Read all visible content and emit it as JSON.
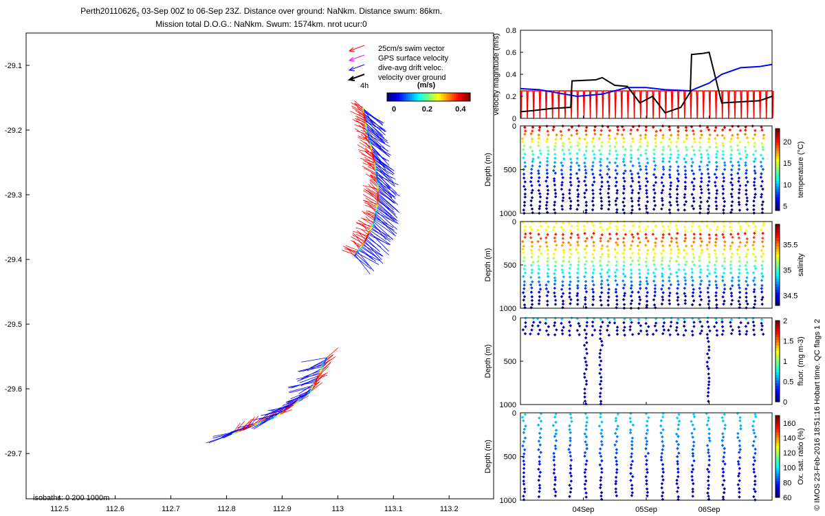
{
  "header": {
    "title_line1_prefix": "Perth20110626",
    "title_line1_sub": "2",
    "title_line1_suffix": " 03-Sep 00Z to 06-Sep 23Z. Distance over ground: NaNkm. Distance swum: 86km.",
    "title_line2": "Mission total D.O.G.: NaNkm. Swum: 1574km. nrot ucur:0"
  },
  "footer_note": "© IMOS 23-Feb-2016 18:51:16 Hobart time. QC flags 1  2",
  "colors": {
    "swim": "#ff0000",
    "gps": "#ff00ff",
    "drift": "#0000ff",
    "ground": "#000000"
  },
  "chart_data": [
    {
      "type": "map",
      "name": "glider-track",
      "xlim": [
        112.44,
        113.28
      ],
      "ylim": [
        -29.77,
        -29.05
      ],
      "xticks": [
        "112.5",
        "112.6",
        "112.7",
        "112.8",
        "112.9",
        "113",
        "113.1",
        "113.2"
      ],
      "xtick_values": [
        112.5,
        112.6,
        112.7,
        112.8,
        112.9,
        113.0,
        113.1,
        113.2
      ],
      "yticks": [
        "-29.1",
        "-29.2",
        "-29.3",
        "-29.4",
        "-29.5",
        "-29.6",
        "-29.7"
      ],
      "ytick_values": [
        -29.1,
        -29.2,
        -29.3,
        -29.4,
        -29.5,
        -29.6,
        -29.7
      ],
      "legend": [
        "25cm/s swim vector",
        "GPS surface velocity",
        "dive-avg drift veloc.",
        "velocity over ground"
      ],
      "legend_scale_label": "4h",
      "colorbar": {
        "label": "(m/s)",
        "ticks": [
          "0",
          "0.2",
          "0.4"
        ],
        "tick_values": [
          0,
          0.2,
          0.4
        ],
        "range": [
          0,
          0.5
        ]
      },
      "isobath_note": "isobaths: 0   200  1000m",
      "track_north": [
        [
          113.045,
          -29.165
        ],
        [
          113.05,
          -29.19
        ],
        [
          113.058,
          -29.22
        ],
        [
          113.066,
          -29.25
        ],
        [
          113.072,
          -29.28
        ],
        [
          113.072,
          -29.31
        ],
        [
          113.066,
          -29.34
        ],
        [
          113.05,
          -29.37
        ],
        [
          113.03,
          -29.395
        ]
      ],
      "track_south": [
        [
          112.81,
          -29.67
        ],
        [
          112.85,
          -29.655
        ],
        [
          112.885,
          -29.645
        ],
        [
          112.92,
          -29.625
        ],
        [
          112.95,
          -29.605
        ],
        [
          112.965,
          -29.58
        ],
        [
          112.98,
          -29.552
        ]
      ]
    },
    {
      "type": "line",
      "name": "velocity-magnitude",
      "ylabel": "velocity magnitude (m/s)",
      "xlim": [
        3.0,
        7.0
      ],
      "ylim": [
        0,
        0.8
      ],
      "yticks": [
        "0",
        "0.2",
        "0.4",
        "0.6",
        "0.8"
      ],
      "ytick_values": [
        0,
        0.2,
        0.4,
        0.6,
        0.8
      ],
      "series": [
        {
          "color": "#0000ff",
          "x": [
            3.0,
            3.3,
            3.6,
            3.9,
            4.3,
            4.7,
            5.0,
            5.3,
            5.7,
            6.0,
            6.2,
            6.5,
            6.8,
            7.0
          ],
          "y": [
            0.27,
            0.26,
            0.23,
            0.2,
            0.22,
            0.28,
            0.28,
            0.26,
            0.25,
            0.32,
            0.4,
            0.46,
            0.47,
            0.49
          ]
        },
        {
          "color": "#000000",
          "x": [
            3.0,
            3.2,
            3.5,
            3.8,
            3.82,
            4.2,
            4.3,
            4.5,
            4.7,
            4.9,
            5.1,
            5.3,
            5.55,
            5.7,
            5.72,
            5.9,
            6.0,
            6.2,
            6.5,
            6.8,
            7.0
          ],
          "y": [
            0.06,
            0.07,
            0.09,
            0.1,
            0.34,
            0.35,
            0.37,
            0.3,
            0.29,
            0.14,
            0.2,
            0.05,
            0.1,
            0.24,
            0.58,
            0.59,
            0.6,
            0.14,
            0.15,
            0.16,
            0.2
          ]
        },
        {
          "color": "#ff0000",
          "x": [
            3.0,
            6.6,
            7.0
          ],
          "y": [
            0.25,
            0.25,
            0.25
          ]
        }
      ]
    },
    {
      "type": "scatter",
      "name": "temperature-section",
      "ylabel": "Depth (m)",
      "ylim": [
        0,
        1000
      ],
      "yticks": [
        "0",
        "500",
        "1000"
      ],
      "ytick_values": [
        0,
        500,
        1000
      ],
      "colorbar": {
        "label": "temperature (°C)",
        "ticks": [
          "5",
          "10",
          "15",
          "20"
        ],
        "tick_values": [
          5,
          10,
          15,
          20
        ],
        "range": [
          4,
          23
        ]
      }
    },
    {
      "type": "scatter",
      "name": "salinity-section",
      "ylabel": "Depth (m)",
      "ylim": [
        0,
        1000
      ],
      "yticks": [
        "0",
        "500",
        "1000"
      ],
      "ytick_values": [
        0,
        500,
        1000
      ],
      "colorbar": {
        "label": "salinity",
        "ticks": [
          "34.5",
          "35",
          "35.5"
        ],
        "tick_values": [
          34.5,
          35,
          35.5
        ],
        "range": [
          34.3,
          35.9
        ]
      }
    },
    {
      "type": "scatter",
      "name": "fluorescence-section",
      "ylabel": "Depth (m)",
      "ylim": [
        0,
        1000
      ],
      "yticks": [
        "0",
        "500",
        "1000"
      ],
      "ytick_values": [
        0,
        500,
        1000
      ],
      "colorbar": {
        "label": "fluor. (mg m-3)",
        "ticks": [
          "0",
          "0.5",
          "1",
          "1.5",
          "2"
        ],
        "tick_values": [
          0,
          0.5,
          1,
          1.5,
          2
        ],
        "range": [
          0,
          2
        ]
      }
    },
    {
      "type": "scatter",
      "name": "oxygen-section",
      "ylabel": "Depth (m)",
      "ylim": [
        0,
        1000
      ],
      "yticks": [
        "0",
        "500",
        "1000"
      ],
      "ytick_values": [
        0,
        500,
        1000
      ],
      "xlim": [
        3.0,
        7.0
      ],
      "xticks": [
        "04Sep",
        "05Sep",
        "06Sep"
      ],
      "xtick_values": [
        4,
        5,
        6
      ],
      "colorbar": {
        "label": "Ox. sat. ratio (%)",
        "ticks": [
          "60",
          "80",
          "100",
          "120",
          "140",
          "160"
        ],
        "tick_values": [
          60,
          80,
          100,
          120,
          140,
          160
        ],
        "range": [
          60,
          170
        ]
      }
    }
  ]
}
